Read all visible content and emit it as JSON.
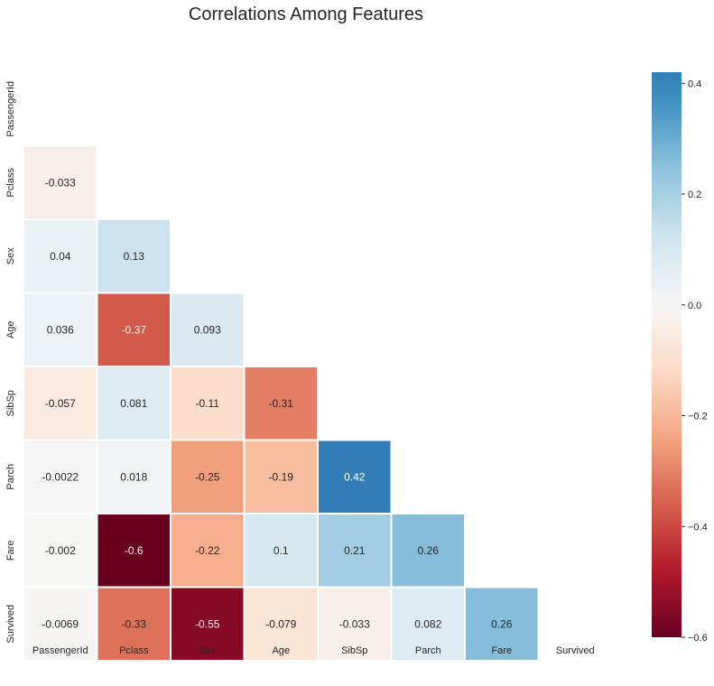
{
  "chart_data": {
    "type": "heatmap",
    "title": "Correlations Among Features",
    "variables": [
      "PassengerId",
      "Pclass",
      "Sex",
      "Age",
      "SibSp",
      "Parch",
      "Fare",
      "Survived"
    ],
    "mask": "upper-triangle-including-diagonal",
    "cells": [
      {
        "row": "Pclass",
        "col": "PassengerId",
        "value": -0.033,
        "label": "-0.033"
      },
      {
        "row": "Sex",
        "col": "PassengerId",
        "value": 0.04,
        "label": "0.04"
      },
      {
        "row": "Sex",
        "col": "Pclass",
        "value": 0.13,
        "label": "0.13"
      },
      {
        "row": "Age",
        "col": "PassengerId",
        "value": 0.036,
        "label": "0.036"
      },
      {
        "row": "Age",
        "col": "Pclass",
        "value": -0.37,
        "label": "-0.37"
      },
      {
        "row": "Age",
        "col": "Sex",
        "value": 0.093,
        "label": "0.093"
      },
      {
        "row": "SibSp",
        "col": "PassengerId",
        "value": -0.057,
        "label": "-0.057"
      },
      {
        "row": "SibSp",
        "col": "Pclass",
        "value": 0.081,
        "label": "0.081"
      },
      {
        "row": "SibSp",
        "col": "Sex",
        "value": -0.11,
        "label": "-0.11"
      },
      {
        "row": "SibSp",
        "col": "Age",
        "value": -0.31,
        "label": "-0.31"
      },
      {
        "row": "Parch",
        "col": "PassengerId",
        "value": -0.0022,
        "label": "-0.0022"
      },
      {
        "row": "Parch",
        "col": "Pclass",
        "value": 0.018,
        "label": "0.018"
      },
      {
        "row": "Parch",
        "col": "Sex",
        "value": -0.25,
        "label": "-0.25"
      },
      {
        "row": "Parch",
        "col": "Age",
        "value": -0.19,
        "label": "-0.19"
      },
      {
        "row": "Parch",
        "col": "SibSp",
        "value": 0.42,
        "label": "0.42"
      },
      {
        "row": "Fare",
        "col": "PassengerId",
        "value": -0.002,
        "label": "-0.002"
      },
      {
        "row": "Fare",
        "col": "Pclass",
        "value": -0.6,
        "label": "-0.6"
      },
      {
        "row": "Fare",
        "col": "Sex",
        "value": -0.22,
        "label": "-0.22"
      },
      {
        "row": "Fare",
        "col": "Age",
        "value": 0.1,
        "label": "0.1"
      },
      {
        "row": "Fare",
        "col": "SibSp",
        "value": 0.21,
        "label": "0.21"
      },
      {
        "row": "Fare",
        "col": "Parch",
        "value": 0.26,
        "label": "0.26"
      },
      {
        "row": "Survived",
        "col": "PassengerId",
        "value": -0.0069,
        "label": "-0.0069"
      },
      {
        "row": "Survived",
        "col": "Pclass",
        "value": -0.33,
        "label": "-0.33"
      },
      {
        "row": "Survived",
        "col": "Sex",
        "value": -0.55,
        "label": "-0.55"
      },
      {
        "row": "Survived",
        "col": "Age",
        "value": -0.079,
        "label": "-0.079"
      },
      {
        "row": "Survived",
        "col": "SibSp",
        "value": -0.033,
        "label": "-0.033"
      },
      {
        "row": "Survived",
        "col": "Parch",
        "value": 0.082,
        "label": "0.082"
      },
      {
        "row": "Survived",
        "col": "Fare",
        "value": 0.26,
        "label": "0.26"
      }
    ],
    "colorbar": {
      "vmin": -0.6,
      "vmax": 0.42,
      "ticks": [
        -0.6,
        -0.4,
        -0.2,
        0.0,
        0.2,
        0.4
      ],
      "tick_labels": [
        "−0.6",
        "−0.4",
        "−0.2",
        "0.0",
        "0.2",
        "0.4"
      ]
    },
    "colormap": "RdBu",
    "colormap_stops": [
      "#67001f",
      "#b2182b",
      "#d6604d",
      "#f4a582",
      "#fddbc7",
      "#f7f7f7",
      "#d1e5f0",
      "#92c5de",
      "#4393c3",
      "#2166ac",
      "#053061"
    ],
    "grid": false
  }
}
